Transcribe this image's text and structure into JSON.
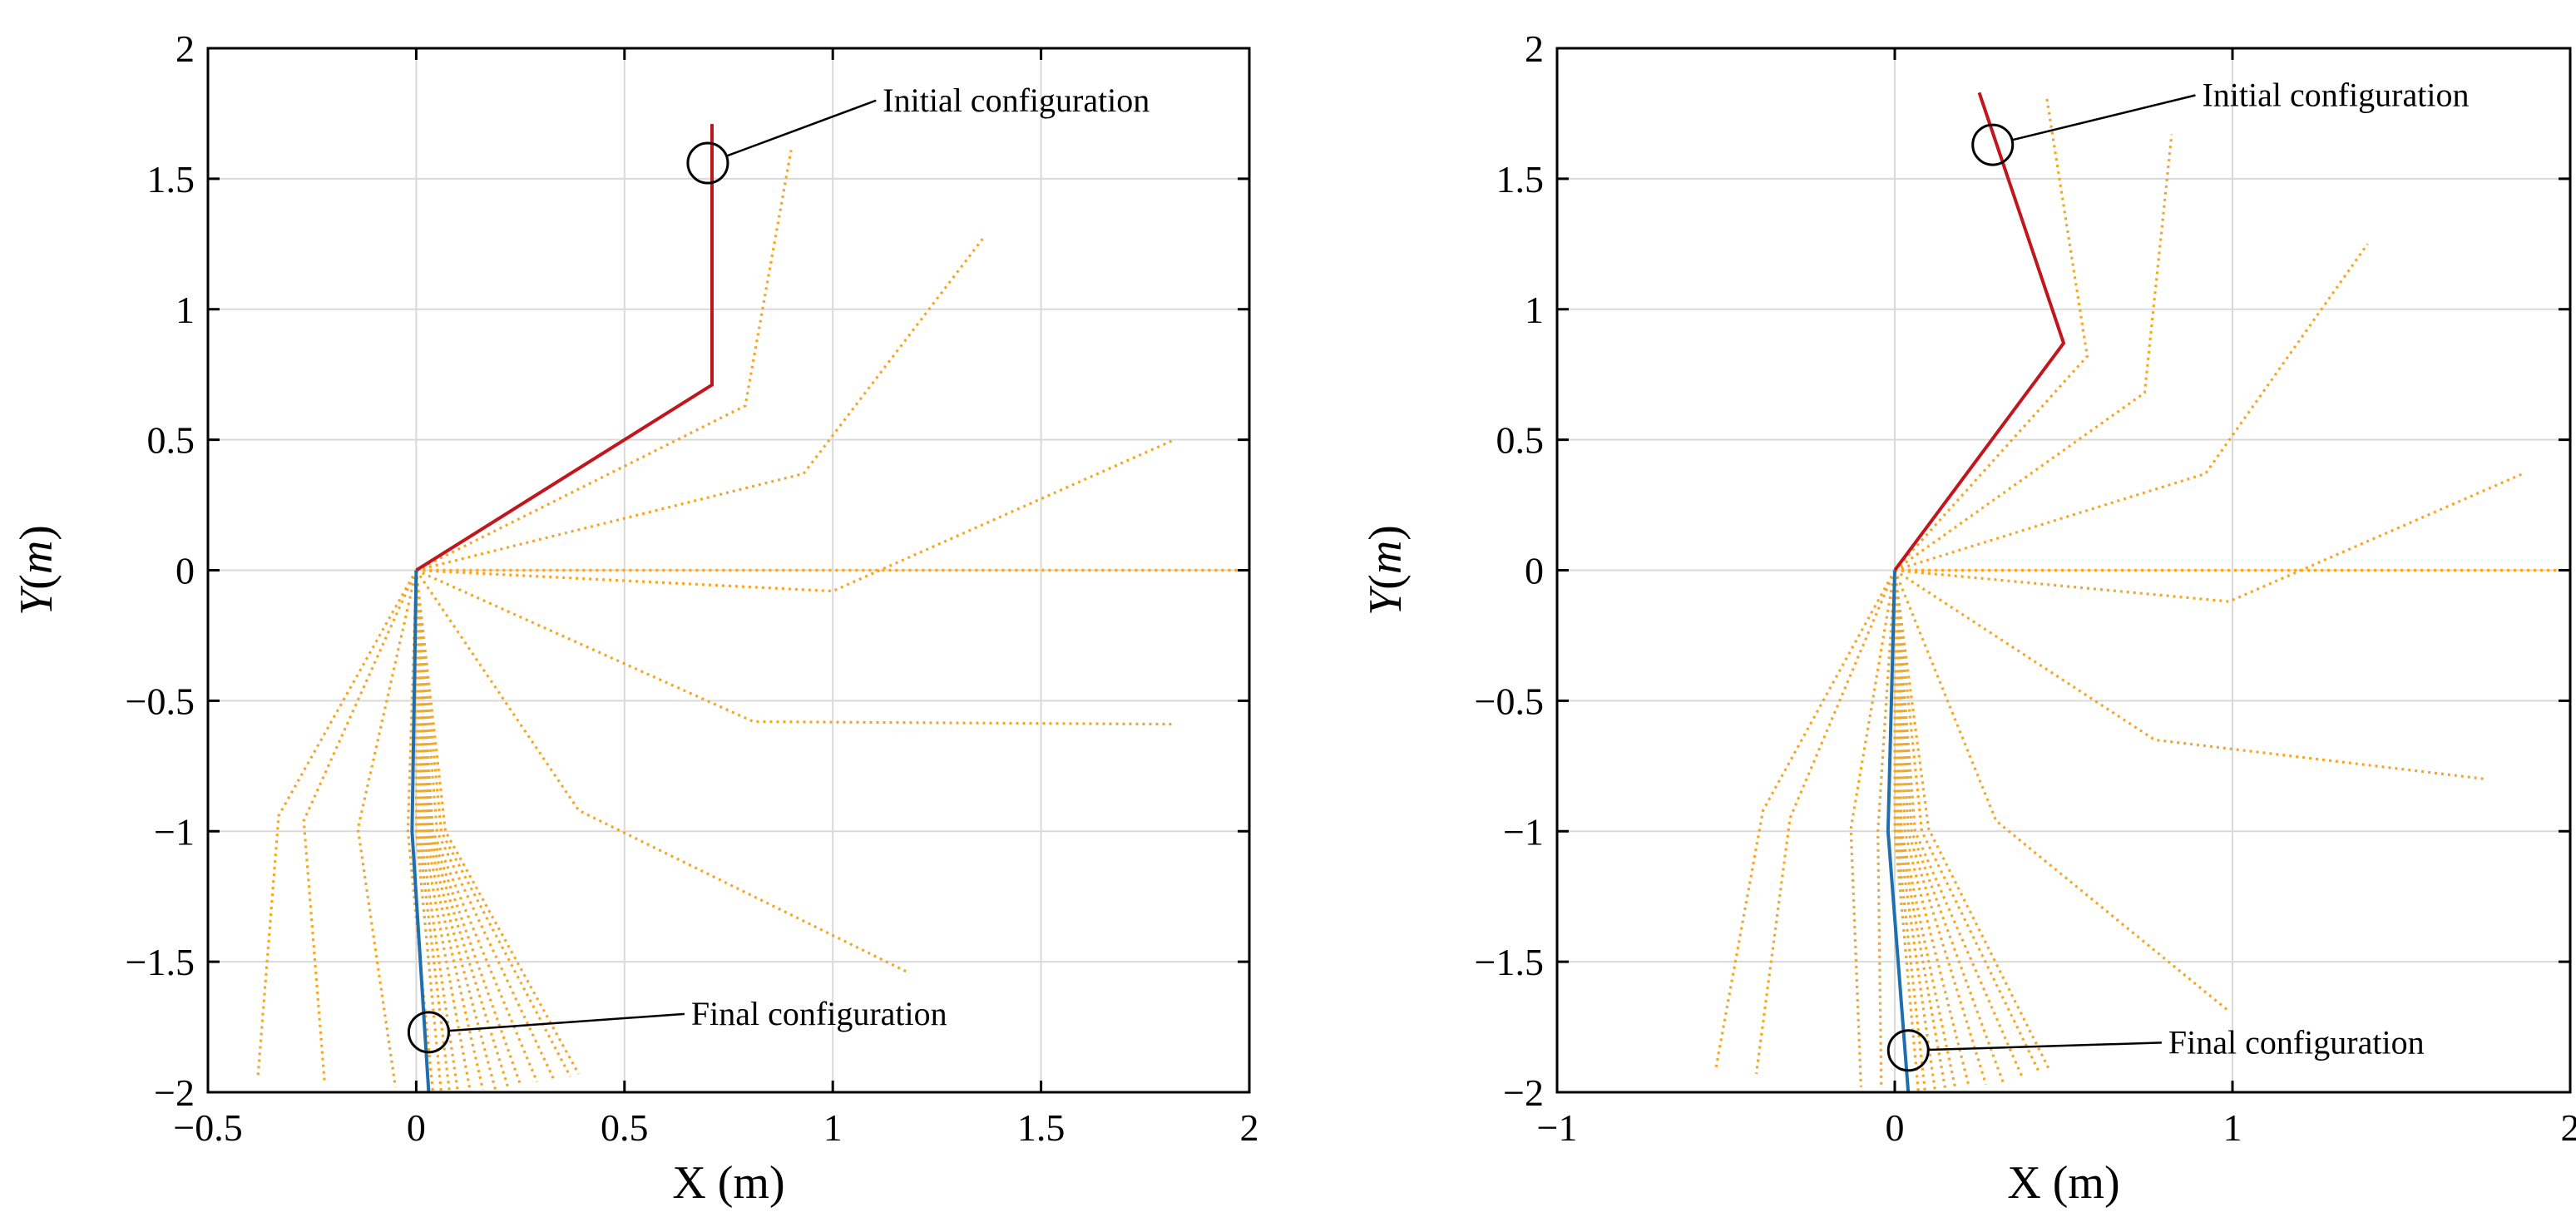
{
  "chart_data": [
    {
      "type": "line",
      "name": "left-panel",
      "xlabel": "X (m)",
      "ylabel_prefix": "Y",
      "ylabel_unit": "m",
      "xlim": [
        -0.5,
        2
      ],
      "ylim": [
        -2,
        2
      ],
      "xticks": [
        -0.5,
        0,
        0.5,
        1,
        1.5,
        2
      ],
      "xtick_labels": [
        "−0.5",
        "0",
        "0.5",
        "1",
        "1.5",
        "2"
      ],
      "yticks": [
        -2,
        -1.5,
        -1,
        -0.5,
        0,
        0.5,
        1,
        1.5,
        2
      ],
      "ytick_labels": [
        "−2",
        "−1.5",
        "−1",
        "−0.5",
        "0",
        "0.5",
        "1",
        "1.5",
        "2"
      ],
      "grid": true,
      "initial": {
        "points": [
          [
            0,
            0
          ],
          [
            0.71,
            0.71
          ],
          [
            0.71,
            1.71
          ]
        ],
        "color": "#c0161c"
      },
      "final": {
        "points": [
          [
            0,
            0
          ],
          [
            -0.01,
            -1.0
          ],
          [
            0.03,
            -2.0
          ]
        ],
        "color": "#1f6fb0"
      },
      "trajectory_color": "#f5a623",
      "trajectory": [
        [
          [
            0,
            0
          ],
          [
            0.79,
            0.63
          ],
          [
            0.9,
            1.61
          ]
        ],
        [
          [
            0,
            0
          ],
          [
            0.93,
            0.37
          ],
          [
            1.36,
            1.27
          ]
        ],
        [
          [
            0,
            0
          ],
          [
            1.0,
            -0.08
          ],
          [
            1.82,
            0.5
          ]
        ],
        [
          [
            0,
            0
          ],
          [
            2.0,
            0.0
          ]
        ],
        [
          [
            0,
            0
          ],
          [
            0.81,
            -0.58
          ],
          [
            1.82,
            -0.59
          ]
        ],
        [
          [
            0,
            0
          ],
          [
            0.39,
            -0.92
          ],
          [
            1.18,
            -1.54
          ]
        ],
        [
          [
            0,
            0
          ],
          [
            0.07,
            -1.0
          ],
          [
            0.39,
            -1.93
          ]
        ],
        [
          [
            0,
            0
          ],
          [
            0.06,
            -1.0
          ],
          [
            0.37,
            -1.94
          ]
        ],
        [
          [
            0,
            0
          ],
          [
            0.05,
            -1.0
          ],
          [
            0.33,
            -1.95
          ]
        ],
        [
          [
            0,
            0
          ],
          [
            0.04,
            -1.0
          ],
          [
            0.29,
            -1.96
          ]
        ],
        [
          [
            0,
            0
          ],
          [
            0.035,
            -1.0
          ],
          [
            0.25,
            -1.97
          ]
        ],
        [
          [
            0,
            0
          ],
          [
            0.03,
            -1.0
          ],
          [
            0.22,
            -1.98
          ]
        ],
        [
          [
            0,
            0
          ],
          [
            0.025,
            -1.0
          ],
          [
            0.19,
            -1.99
          ]
        ],
        [
          [
            0,
            0
          ],
          [
            0.02,
            -1.0
          ],
          [
            0.16,
            -1.99
          ]
        ],
        [
          [
            0,
            0
          ],
          [
            0.015,
            -1.0
          ],
          [
            0.13,
            -2.0
          ]
        ],
        [
          [
            0,
            0
          ],
          [
            0.01,
            -1.0
          ],
          [
            0.1,
            -2.0
          ]
        ],
        [
          [
            0,
            0
          ],
          [
            0.005,
            -1.0
          ],
          [
            0.08,
            -2.0
          ]
        ],
        [
          [
            0,
            0
          ],
          [
            0.0,
            -1.0
          ],
          [
            0.06,
            -2.0
          ]
        ],
        [
          [
            0,
            0
          ],
          [
            -0.02,
            -1.0
          ],
          [
            0.04,
            -2.0
          ]
        ],
        [
          [
            0,
            0
          ],
          [
            -0.14,
            -0.99
          ],
          [
            -0.05,
            -1.98
          ]
        ],
        [
          [
            0,
            0
          ],
          [
            -0.27,
            -0.96
          ],
          [
            -0.22,
            -1.96
          ]
        ],
        [
          [
            0,
            0
          ],
          [
            -0.33,
            -0.94
          ],
          [
            -0.38,
            -1.94
          ]
        ]
      ],
      "annotations": [
        {
          "text": "Initial configuration",
          "at": [
            0.7,
            1.56
          ],
          "label_at": [
            1.12,
            1.8
          ]
        },
        {
          "text": "Final configuration",
          "at": [
            0.03,
            -1.77
          ],
          "label_at": [
            0.66,
            -1.7
          ]
        }
      ]
    },
    {
      "type": "line",
      "name": "right-panel",
      "xlabel": "X (m)",
      "ylabel_prefix": "Y",
      "ylabel_unit": "m",
      "xlim": [
        -1,
        2
      ],
      "ylim": [
        -2,
        2
      ],
      "xticks": [
        -1,
        0,
        1,
        2
      ],
      "xtick_labels": [
        "−1",
        "0",
        "1",
        "2"
      ],
      "yticks": [
        -2,
        -1.5,
        -1,
        -0.5,
        0,
        0.5,
        1,
        1.5,
        2
      ],
      "ytick_labels": [
        "−2",
        "−1.5",
        "−1",
        "−0.5",
        "0",
        "0.5",
        "1",
        "1.5",
        "2"
      ],
      "grid": true,
      "initial": {
        "points": [
          [
            0,
            0
          ],
          [
            0.5,
            0.87
          ],
          [
            0.25,
            1.83
          ]
        ],
        "color": "#c0161c"
      },
      "final": {
        "points": [
          [
            0,
            0
          ],
          [
            -0.02,
            -1.0
          ],
          [
            0.04,
            -2.0
          ]
        ],
        "color": "#1f6fb0"
      },
      "trajectory_color": "#f5a623",
      "trajectory": [
        [
          [
            0,
            0
          ],
          [
            0.57,
            0.82
          ],
          [
            0.45,
            1.81
          ]
        ],
        [
          [
            0,
            0
          ],
          [
            0.74,
            0.68
          ],
          [
            0.82,
            1.67
          ]
        ],
        [
          [
            0,
            0
          ],
          [
            0.92,
            0.37
          ],
          [
            1.4,
            1.25
          ]
        ],
        [
          [
            0,
            0
          ],
          [
            0.99,
            -0.12
          ],
          [
            1.86,
            0.37
          ]
        ],
        [
          [
            0,
            0
          ],
          [
            2.0,
            0.0
          ]
        ],
        [
          [
            0,
            0
          ],
          [
            0.77,
            -0.65
          ],
          [
            1.75,
            -0.8
          ]
        ],
        [
          [
            0,
            0
          ],
          [
            0.3,
            -0.96
          ],
          [
            0.99,
            -1.69
          ]
        ],
        [
          [
            0,
            0
          ],
          [
            0.1,
            -0.99
          ],
          [
            0.46,
            -1.92
          ]
        ],
        [
          [
            0,
            0
          ],
          [
            0.08,
            -1.0
          ],
          [
            0.43,
            -1.93
          ]
        ],
        [
          [
            0,
            0
          ],
          [
            0.06,
            -1.0
          ],
          [
            0.38,
            -1.95
          ]
        ],
        [
          [
            0,
            0
          ],
          [
            0.05,
            -1.0
          ],
          [
            0.32,
            -1.96
          ]
        ],
        [
          [
            0,
            0
          ],
          [
            0.04,
            -1.0
          ],
          [
            0.27,
            -1.97
          ]
        ],
        [
          [
            0,
            0
          ],
          [
            0.03,
            -1.0
          ],
          [
            0.22,
            -1.98
          ]
        ],
        [
          [
            0,
            0
          ],
          [
            0.02,
            -1.0
          ],
          [
            0.18,
            -1.99
          ]
        ],
        [
          [
            0,
            0
          ],
          [
            0.015,
            -1.0
          ],
          [
            0.15,
            -1.99
          ]
        ],
        [
          [
            0,
            0
          ],
          [
            0.01,
            -1.0
          ],
          [
            0.12,
            -2.0
          ]
        ],
        [
          [
            0,
            0
          ],
          [
            0.005,
            -1.0
          ],
          [
            0.09,
            -2.0
          ]
        ],
        [
          [
            0,
            0
          ],
          [
            0.0,
            -1.0
          ],
          [
            0.07,
            -2.0
          ]
        ],
        [
          [
            0,
            0
          ],
          [
            -0.05,
            -1.0
          ],
          [
            -0.04,
            -1.98
          ]
        ],
        [
          [
            0,
            0
          ],
          [
            -0.13,
            -0.99
          ],
          [
            -0.1,
            -1.98
          ]
        ],
        [
          [
            0,
            0
          ],
          [
            -0.31,
            -0.95
          ],
          [
            -0.41,
            -1.93
          ]
        ],
        [
          [
            0,
            0
          ],
          [
            -0.39,
            -0.92
          ],
          [
            -0.53,
            -1.91
          ]
        ]
      ],
      "annotations": [
        {
          "text": "Initial configuration",
          "at": [
            0.29,
            1.63
          ],
          "label_at": [
            0.91,
            1.82
          ]
        },
        {
          "text": "Final configuration",
          "at": [
            0.04,
            -1.84
          ],
          "label_at": [
            0.81,
            -1.81
          ]
        }
      ]
    }
  ]
}
